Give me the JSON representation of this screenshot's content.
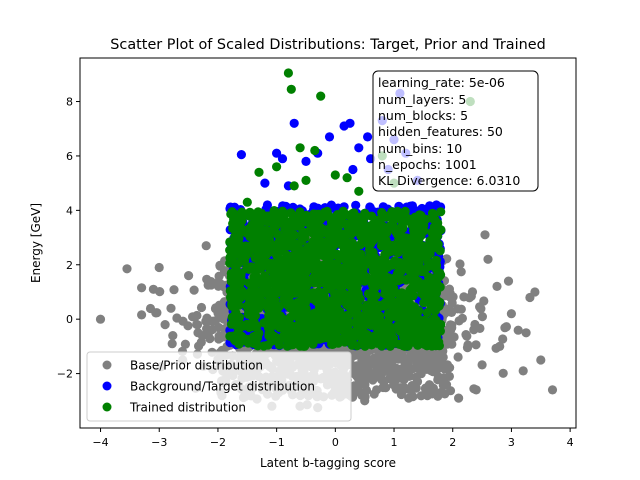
{
  "chart_data": {
    "type": "scatter",
    "title": "Scatter Plot of Scaled Distributions: Target, Prior and Trained",
    "xlabel": "Latent b-tagging score",
    "ylabel": "Energy [GeV]",
    "xlim": [
      -4.35,
      4.1
    ],
    "ylim": [
      -4.0,
      9.6
    ],
    "xticks": [
      -4,
      -3,
      -2,
      -1,
      0,
      1,
      2,
      3,
      4
    ],
    "yticks": [
      -2,
      0,
      2,
      4,
      6,
      8
    ],
    "grid": false,
    "legend_placement": "lower-left",
    "colors": {
      "prior": "#808080",
      "target": "#0000ff",
      "trained": "#008000"
    },
    "series": [
      {
        "name": "Base/Prior distribution",
        "color": "#808080",
        "core": {
          "x_range": [
            -2.0,
            2.0
          ],
          "y_range": [
            -3.0,
            3.0
          ],
          "shape": "gaussian-cloud"
        },
        "points": [
          [
            -4.0,
            0.0
          ],
          [
            -3.55,
            1.85
          ],
          [
            -3.0,
            1.9
          ],
          [
            -3.1,
            1.1
          ],
          [
            -2.8,
            0.4
          ],
          [
            -2.9,
            -0.2
          ],
          [
            -2.5,
            1.6
          ],
          [
            -2.2,
            2.7
          ],
          [
            -2.6,
            -1.5
          ],
          [
            -1.95,
            -2.7
          ],
          [
            -0.3,
            -3.25
          ],
          [
            0.5,
            -3.0
          ],
          [
            1.25,
            -2.9
          ],
          [
            2.1,
            -2.9
          ],
          [
            2.55,
            3.1
          ],
          [
            2.4,
            -2.6
          ],
          [
            2.95,
            1.4
          ],
          [
            3.0,
            0.2
          ],
          [
            3.4,
            1.0
          ],
          [
            3.25,
            -0.5
          ],
          [
            3.7,
            -2.6
          ],
          [
            3.5,
            -1.5
          ],
          [
            3.2,
            -1.9
          ],
          [
            2.8,
            -1.0
          ],
          [
            2.6,
            2.2
          ]
        ]
      },
      {
        "name": "Background/Target distribution",
        "color": "#0000ff",
        "core": {
          "x_range": [
            -1.8,
            1.8
          ],
          "y_range": [
            -1.0,
            4.2
          ],
          "shape": "uniform-block"
        },
        "points": [
          [
            -1.6,
            6.05
          ],
          [
            -0.7,
            7.2
          ],
          [
            -0.5,
            5.8
          ],
          [
            -0.3,
            6.1
          ],
          [
            -0.1,
            6.7
          ],
          [
            0.15,
            7.1
          ],
          [
            0.25,
            7.2
          ],
          [
            0.4,
            6.3
          ],
          [
            0.55,
            6.7
          ],
          [
            0.8,
            7.3
          ],
          [
            1.0,
            6.6
          ],
          [
            1.2,
            6.1
          ],
          [
            1.1,
            8.3
          ],
          [
            0.6,
            5.9
          ],
          [
            0.9,
            5.5
          ],
          [
            -0.9,
            5.9
          ],
          [
            -1.2,
            5.0
          ],
          [
            -0.8,
            4.9
          ],
          [
            0.3,
            5.5
          ],
          [
            1.4,
            5.1
          ],
          [
            -1.0,
            6.1
          ]
        ]
      },
      {
        "name": "Trained distribution",
        "color": "#008000",
        "core": {
          "x_range": [
            -1.8,
            1.8
          ],
          "y_range": [
            -1.0,
            4.0
          ],
          "shape": "uniform-block"
        },
        "points": [
          [
            -0.8,
            9.05
          ],
          [
            -0.75,
            8.45
          ],
          [
            -0.25,
            8.2
          ],
          [
            2.3,
            8.0
          ],
          [
            -0.35,
            6.2
          ],
          [
            -0.6,
            6.3
          ],
          [
            -1.3,
            5.4
          ],
          [
            -1.0,
            5.6
          ],
          [
            -0.5,
            5.1
          ],
          [
            0.0,
            5.3
          ],
          [
            0.2,
            5.2
          ],
          [
            0.8,
            6.0
          ],
          [
            1.0,
            5.0
          ],
          [
            -1.5,
            4.3
          ],
          [
            -0.7,
            4.9
          ],
          [
            0.4,
            4.7
          ]
        ]
      }
    ],
    "annotation": [
      "learning_rate: 5e-06",
      "num_layers: 5",
      "num_blocks: 5",
      "hidden_features: 50",
      "num_bins: 10",
      "n_epochs: 1001",
      "KL Divergence: 6.0310"
    ]
  }
}
